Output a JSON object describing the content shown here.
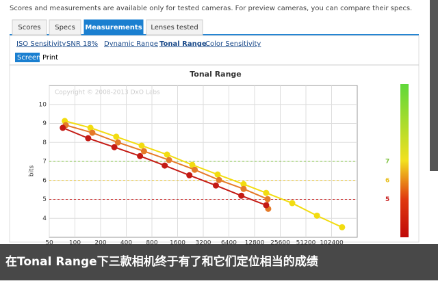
{
  "notice": "Scores and measurements are available only for tested cameras. For preview cameras, you can compare their specs.",
  "tabs": [
    "Scores",
    "Specs",
    "Measurements",
    "Lenses tested"
  ],
  "sub_tabs": [
    "ISO Sensitivity",
    "SNR 18%",
    "Dynamic Range",
    "Tonal Range",
    "Color Sensitivity"
  ],
  "view_buttons": [
    "Screen",
    "Print"
  ],
  "caption": "在Tonal Range下三款相机终于有了和它们定位相当的成绩",
  "chart_data": {
    "type": "line",
    "title": "Tonal Range",
    "watermark": "Copyright © 2008-2013 DxO Labs",
    "y_label": "bits",
    "xscale": "log",
    "xlim": [
      50,
      204800
    ],
    "ylim": [
      3,
      11
    ],
    "xticks": [
      50,
      100,
      200,
      400,
      800,
      1600,
      3200,
      6400,
      12800,
      25600,
      51200,
      102400
    ],
    "yticks": [
      4,
      5,
      6,
      7,
      8,
      9,
      10
    ],
    "grid": true,
    "reference_lines": [
      {
        "value": 7,
        "color": "#7fc241"
      },
      {
        "value": 6,
        "color": "#e8c020"
      },
      {
        "value": 5,
        "color": "#c82020"
      }
    ],
    "series": [
      {
        "color": "#f2dc10",
        "x": [
          76,
          152,
          305,
          606,
          1203,
          2378,
          4717,
          9510,
          17500,
          35400,
          69000,
          136000
        ],
        "values": [
          9.13,
          8.77,
          8.3,
          7.83,
          7.36,
          6.82,
          6.31,
          5.8,
          5.34,
          4.8,
          4.14,
          3.53
        ]
      },
      {
        "color": "#e57a28",
        "x": [
          78,
          160,
          320,
          645,
          1270,
          2540,
          4900,
          9510,
          18200,
          18500
        ],
        "values": [
          8.91,
          8.51,
          8.0,
          7.54,
          7.07,
          6.56,
          6.02,
          5.55,
          5.01,
          4.5
        ]
      },
      {
        "color": "#c41a14",
        "x": [
          72,
          143,
          290,
          580,
          1130,
          2200,
          4500,
          8950,
          17500
        ],
        "values": [
          8.77,
          8.22,
          7.75,
          7.28,
          6.78,
          6.27,
          5.73,
          5.19,
          4.69
        ]
      }
    ]
  }
}
